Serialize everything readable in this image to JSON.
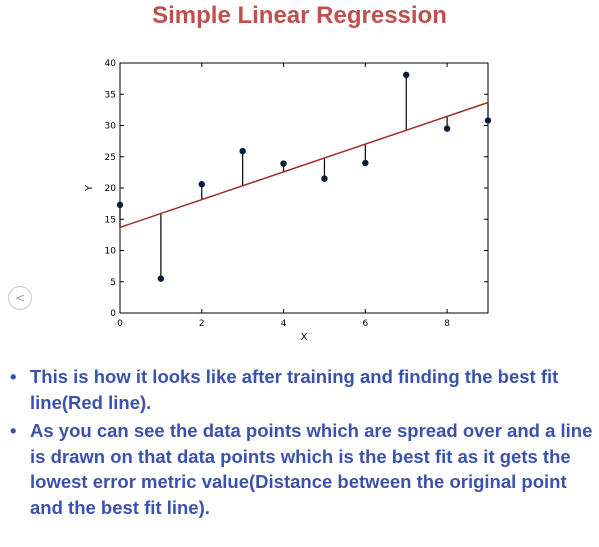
{
  "slide": {
    "title": "Simple Linear Regression",
    "nav_glyph": "<",
    "bullets": [
      "This is how it looks like after training and finding the best fit line(Red line).",
      "As you can see the data points which are spread over and a line is drawn on that data points which is the best fit as it gets the lowest error metric value(Distance between the original point and the best fit line)."
    ],
    "bullet_glyph": "•"
  },
  "colors": {
    "title": "#c0504d",
    "bullets": "#3b52ad",
    "fit_line": "#a0302c",
    "points": "#0d1a3a",
    "residuals": "#000000"
  },
  "chart_data": {
    "type": "scatter",
    "title": "",
    "xlabel": "X",
    "ylabel": "Y",
    "xlim": [
      0,
      9
    ],
    "ylim": [
      0,
      40
    ],
    "xticks": [
      0,
      2,
      4,
      6,
      8
    ],
    "yticks": [
      0,
      5,
      10,
      15,
      20,
      25,
      30,
      35,
      40
    ],
    "grid": false,
    "points": [
      {
        "x": 0,
        "y": 17.3
      },
      {
        "x": 1,
        "y": 5.5
      },
      {
        "x": 2,
        "y": 20.6
      },
      {
        "x": 3,
        "y": 25.9
      },
      {
        "x": 4,
        "y": 23.9
      },
      {
        "x": 5,
        "y": 21.5
      },
      {
        "x": 6,
        "y": 24.0
      },
      {
        "x": 7,
        "y": 38.1
      },
      {
        "x": 8,
        "y": 29.5
      },
      {
        "x": 9,
        "y": 30.8
      }
    ],
    "fit_line": {
      "intercept": 13.7,
      "slope": 2.22
    },
    "residuals_shown": true
  }
}
